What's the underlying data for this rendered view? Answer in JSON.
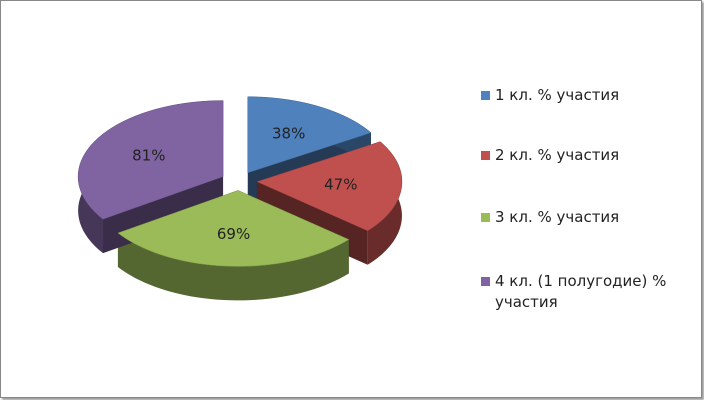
{
  "chart_data": {
    "type": "pie",
    "categories": [
      "1 кл. % участия",
      "2 кл. % участия",
      "3 кл. % участия",
      "4 кл. (1 полугодие) % участия"
    ],
    "values": [
      38,
      47,
      69,
      81
    ],
    "value_labels": [
      "38%",
      "47%",
      "69%",
      "81%"
    ],
    "colors": [
      "#4f81bd",
      "#c0504d",
      "#9bbb59",
      "#8064a2"
    ],
    "legend": "right"
  }
}
